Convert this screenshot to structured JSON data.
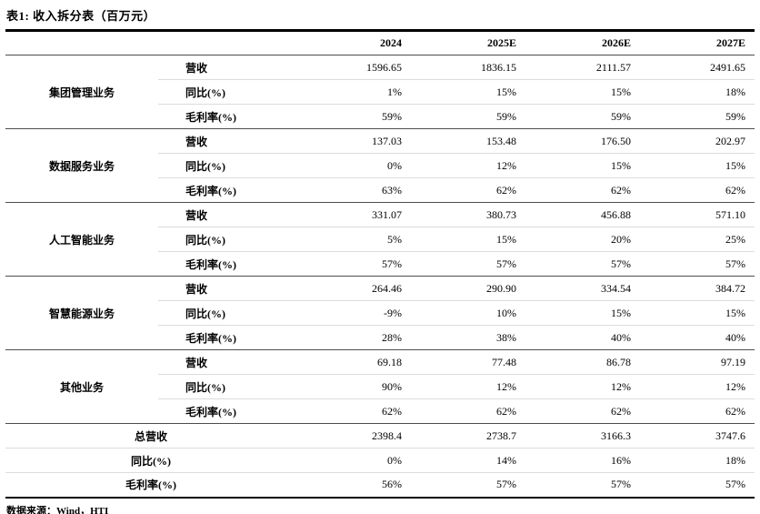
{
  "title": "表1:  收入拆分表（百万元）",
  "source_note": "数据来源：Wind，HTI",
  "chart_data": {
    "type": "table",
    "title": "收入拆分表",
    "unit": "百万元",
    "year_columns": [
      "2024",
      "2025E",
      "2026E",
      "2027E"
    ],
    "groups": [
      {
        "segment": "集团管理业务",
        "rows": [
          {
            "metric": "营收",
            "values": [
              "1596.65",
              "1836.15",
              "2111.57",
              "2491.65"
            ]
          },
          {
            "metric": "同比(%)",
            "values": [
              "1%",
              "15%",
              "15%",
              "18%"
            ]
          },
          {
            "metric": "毛利率(%)",
            "values": [
              "59%",
              "59%",
              "59%",
              "59%"
            ]
          }
        ]
      },
      {
        "segment": "数据服务业务",
        "rows": [
          {
            "metric": "营收",
            "values": [
              "137.03",
              "153.48",
              "176.50",
              "202.97"
            ]
          },
          {
            "metric": "同比(%)",
            "values": [
              "0%",
              "12%",
              "15%",
              "15%"
            ]
          },
          {
            "metric": "毛利率(%)",
            "values": [
              "63%",
              "62%",
              "62%",
              "62%"
            ]
          }
        ]
      },
      {
        "segment": "人工智能业务",
        "rows": [
          {
            "metric": "营收",
            "values": [
              "331.07",
              "380.73",
              "456.88",
              "571.10"
            ]
          },
          {
            "metric": "同比(%)",
            "values": [
              "5%",
              "15%",
              "20%",
              "25%"
            ]
          },
          {
            "metric": "毛利率(%)",
            "values": [
              "57%",
              "57%",
              "57%",
              "57%"
            ]
          }
        ]
      },
      {
        "segment": "智慧能源业务",
        "rows": [
          {
            "metric": "营收",
            "values": [
              "264.46",
              "290.90",
              "334.54",
              "384.72"
            ]
          },
          {
            "metric": "同比(%)",
            "values": [
              "-9%",
              "10%",
              "15%",
              "15%"
            ]
          },
          {
            "metric": "毛利率(%)",
            "values": [
              "28%",
              "38%",
              "40%",
              "40%"
            ]
          }
        ]
      },
      {
        "segment": "其他业务",
        "rows": [
          {
            "metric": "营收",
            "values": [
              "69.18",
              "77.48",
              "86.78",
              "97.19"
            ]
          },
          {
            "metric": "同比(%)",
            "values": [
              "90%",
              "12%",
              "12%",
              "12%"
            ]
          },
          {
            "metric": "毛利率(%)",
            "values": [
              "62%",
              "62%",
              "62%",
              "62%"
            ]
          }
        ]
      }
    ],
    "summary": [
      {
        "metric": "总营收",
        "values": [
          "2398.4",
          "2738.7",
          "3166.3",
          "3747.6"
        ]
      },
      {
        "metric": "同比(%)",
        "values": [
          "0%",
          "14%",
          "16%",
          "18%"
        ]
      },
      {
        "metric": "毛利率(%)",
        "values": [
          "56%",
          "57%",
          "57%",
          "57%"
        ]
      }
    ]
  }
}
